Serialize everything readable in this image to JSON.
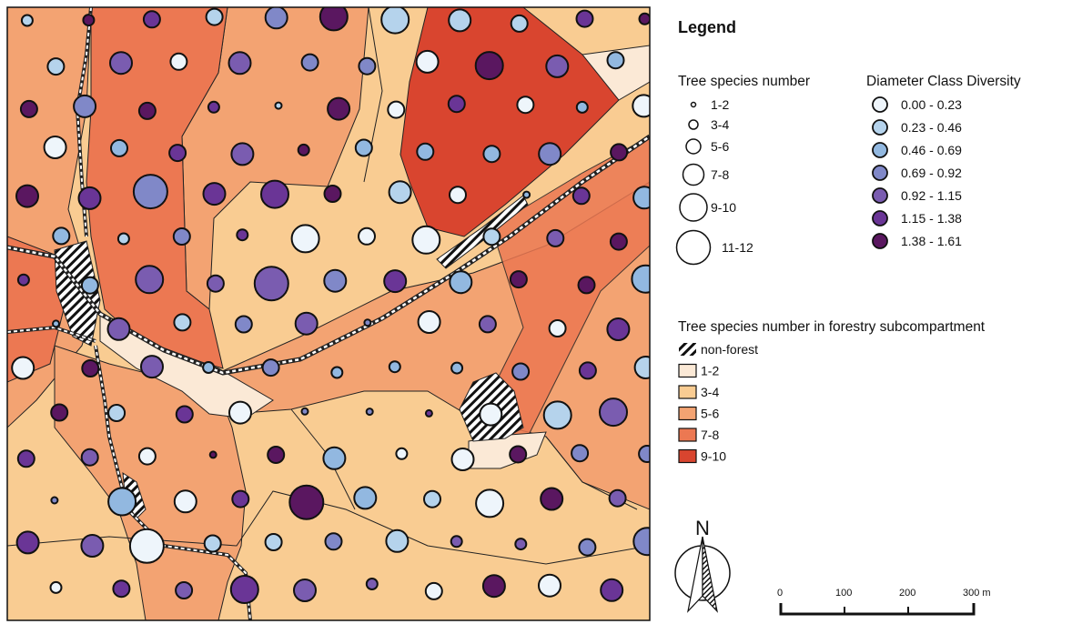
{
  "legend": {
    "title": "Legend",
    "size_title": "Tree species number",
    "size_classes": [
      "1-2",
      "3-4",
      "5-6",
      "7-8",
      "9-10",
      "11-12"
    ],
    "color_title": "Diameter Class Diversity",
    "color_classes": [
      {
        "label": "0.00 - 0.23",
        "color": "#eef5fb"
      },
      {
        "label": "0.23 - 0.46",
        "color": "#b5d3ec"
      },
      {
        "label": "0.46 - 0.69",
        "color": "#92b8e0"
      },
      {
        "label": "0.69 - 0.92",
        "color": "#8088c8"
      },
      {
        "label": "0.92 - 1.15",
        "color": "#7a5cb0"
      },
      {
        "label": "1.15 - 1.38",
        "color": "#6a3596"
      },
      {
        "label": "1.38 - 1.61",
        "color": "#5a1760"
      }
    ],
    "area_title": "Tree species number in forestry subcompartment",
    "area_classes": [
      {
        "label": "non-forest",
        "fill": "hatch"
      },
      {
        "label": "1-2",
        "color": "#fbe9d6"
      },
      {
        "label": "3-4",
        "color": "#f9cc92"
      },
      {
        "label": "5-6",
        "color": "#f3a372"
      },
      {
        "label": "7-8",
        "color": "#ec7852"
      },
      {
        "label": "9-10",
        "color": "#d9452f"
      }
    ]
  },
  "north_label": "N",
  "scale_bar": {
    "labels": [
      "0",
      "100",
      "200",
      "300 m"
    ]
  },
  "colors": {
    "stroke": "#111111",
    "road": "#ffffff"
  }
}
